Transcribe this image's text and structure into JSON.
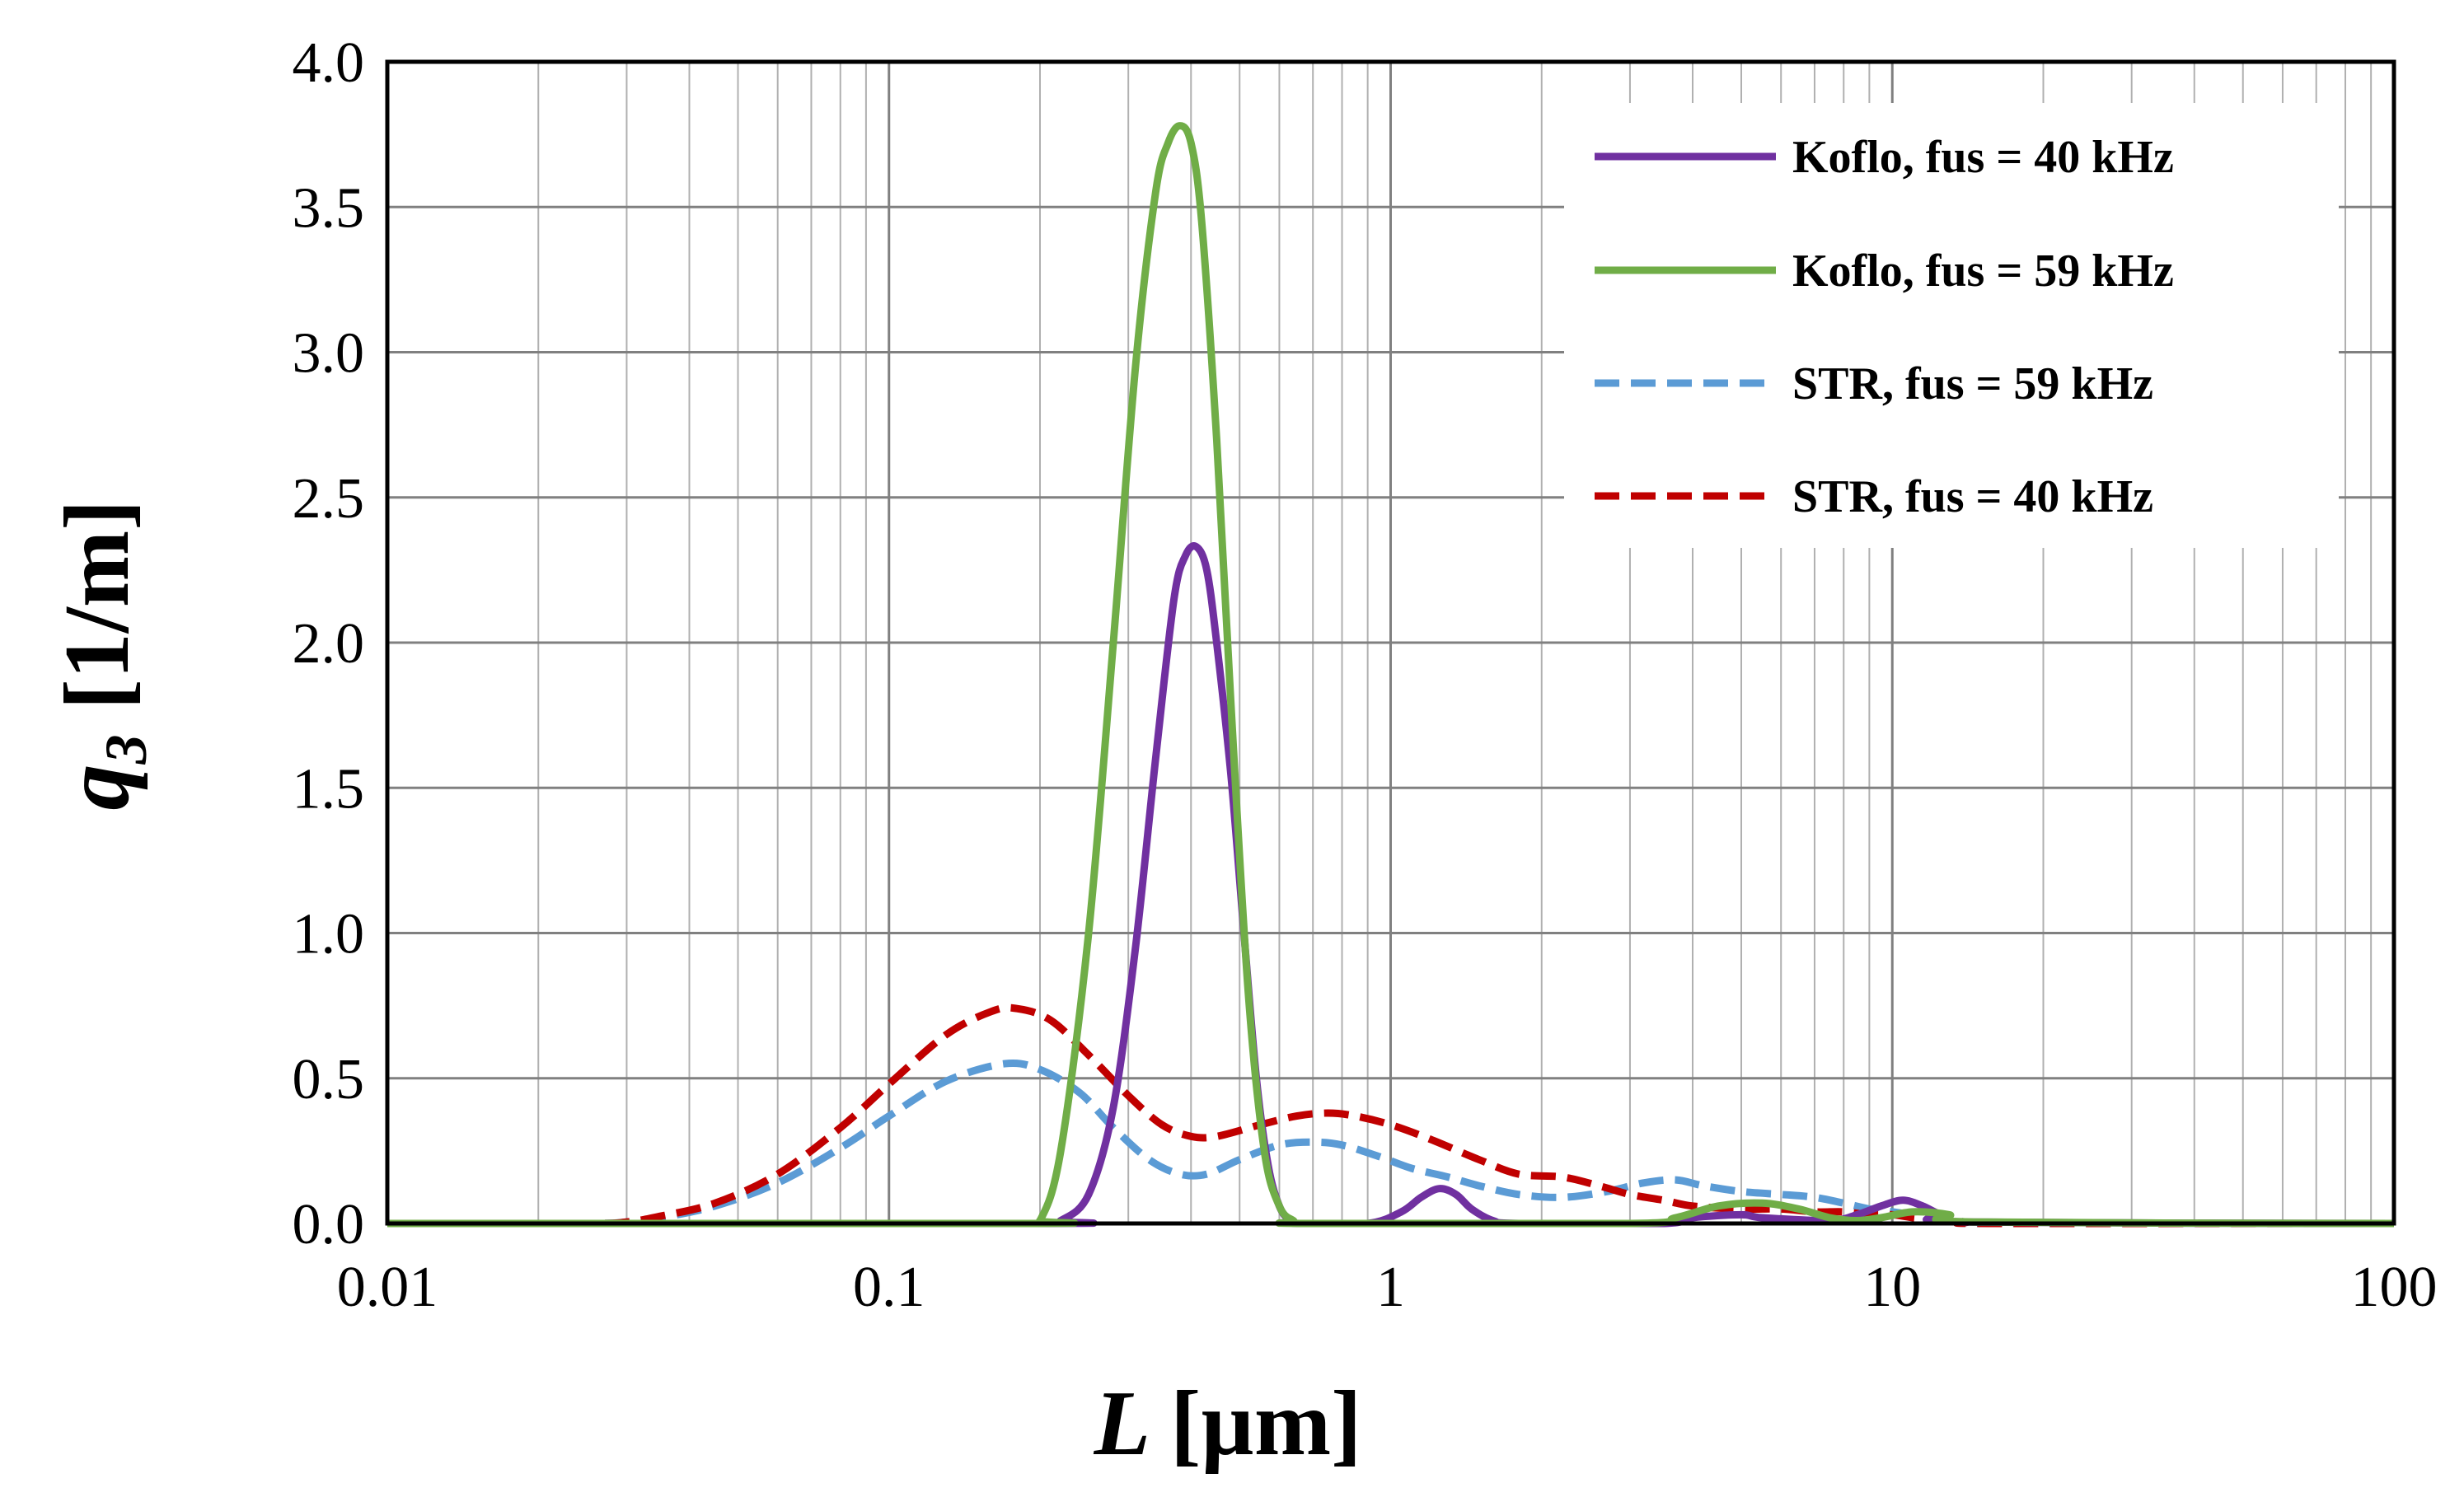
{
  "chart_data": {
    "type": "line",
    "title": "",
    "xlabel": {
      "italic": "L",
      "unit": "[µm]"
    },
    "ylabel": {
      "italic": "q",
      "subscript": "3",
      "unit": "[1/m]"
    },
    "xscale": "log",
    "xlim": [
      0.01,
      100
    ],
    "ylim": [
      0,
      4.0
    ],
    "x_ticks": [
      0.01,
      0.1,
      1,
      10,
      100
    ],
    "x_tick_labels": [
      "0.01",
      "0.1",
      "1",
      "10",
      "100"
    ],
    "y_ticks": [
      0,
      0.5,
      1.0,
      1.5,
      2.0,
      2.5,
      3.0,
      3.5,
      4.0
    ],
    "y_tick_labels": [
      "0.0",
      "0.5",
      "1.0",
      "1.5",
      "2.0",
      "2.5",
      "3.0",
      "3.5",
      "4.0"
    ],
    "grid": true,
    "legend_position": "top-right",
    "series": [
      {
        "name": "Koflo, fus = 40 kHz",
        "color": "#7030a0",
        "dash": "solid",
        "x": [
          0.01,
          0.2,
          0.22,
          0.25,
          0.28,
          0.31,
          0.34,
          0.37,
          0.39,
          0.41,
          0.43,
          0.45,
          0.48,
          0.51,
          0.54,
          0.57,
          0.6,
          0.63,
          0.66,
          0.9,
          1.05,
          1.15,
          1.25,
          1.35,
          1.45,
          1.6,
          1.8,
          3.5,
          4.0,
          5.0,
          5.5,
          7.5,
          8.5,
          9.5,
          10.5,
          11.5,
          12.5,
          14.0,
          100
        ],
        "y": [
          0,
          0,
          0.01,
          0.1,
          0.4,
          0.95,
          1.6,
          2.15,
          2.3,
          2.33,
          2.25,
          2.0,
          1.55,
          1.0,
          0.5,
          0.2,
          0.06,
          0.01,
          0,
          0,
          0.04,
          0.09,
          0.12,
          0.1,
          0.05,
          0.01,
          0,
          0,
          0.02,
          0.03,
          0.02,
          0.01,
          0.03,
          0.06,
          0.08,
          0.06,
          0.03,
          0.005,
          0
        ]
      },
      {
        "name": "Koflo, fus = 59 kHz",
        "color": "#70ad47",
        "dash": "solid",
        "x": [
          0.01,
          0.185,
          0.2,
          0.22,
          0.25,
          0.28,
          0.31,
          0.34,
          0.36,
          0.38,
          0.4,
          0.42,
          0.45,
          0.48,
          0.52,
          0.56,
          0.6,
          0.64,
          0.68,
          3.0,
          3.7,
          4.5,
          5.5,
          6.5,
          7.5,
          8.5,
          9.5,
          11.0,
          13.0,
          14.5,
          100
        ],
        "y": [
          0,
          0,
          0.01,
          0.25,
          1.0,
          2.0,
          2.95,
          3.55,
          3.72,
          3.78,
          3.72,
          3.45,
          2.7,
          1.8,
          0.8,
          0.25,
          0.06,
          0.01,
          0,
          0,
          0.02,
          0.06,
          0.07,
          0.05,
          0.02,
          0.01,
          0.02,
          0.04,
          0.03,
          0.005,
          0
        ]
      },
      {
        "name": "STR, fus = 59 kHz",
        "color": "#5b9bd5",
        "dash": "dashed",
        "x": [
          0.01,
          0.025,
          0.03,
          0.035,
          0.045,
          0.06,
          0.08,
          0.1,
          0.13,
          0.17,
          0.2,
          0.24,
          0.28,
          0.33,
          0.38,
          0.43,
          0.5,
          0.6,
          0.7,
          0.8,
          0.95,
          1.1,
          1.3,
          1.5,
          1.8,
          2.2,
          2.7,
          3.2,
          3.7,
          4.2,
          5.0,
          6.0,
          7.0,
          8.0,
          9.0,
          10.0,
          11.0,
          12.0,
          14.0,
          16.0,
          100
        ],
        "y": [
          0,
          0,
          0.005,
          0.02,
          0.06,
          0.14,
          0.26,
          0.37,
          0.49,
          0.55,
          0.53,
          0.45,
          0.33,
          0.22,
          0.17,
          0.17,
          0.22,
          0.27,
          0.28,
          0.27,
          0.23,
          0.19,
          0.16,
          0.13,
          0.1,
          0.09,
          0.11,
          0.14,
          0.15,
          0.13,
          0.11,
          0.1,
          0.09,
          0.07,
          0.05,
          0.04,
          0.03,
          0.02,
          0.005,
          0,
          0
        ]
      },
      {
        "name": "STR, fus = 40 kHz",
        "color": "#c00000",
        "dash": "dashed",
        "x": [
          0.01,
          0.025,
          0.03,
          0.035,
          0.045,
          0.06,
          0.08,
          0.1,
          0.13,
          0.16,
          0.18,
          0.21,
          0.25,
          0.3,
          0.35,
          0.4,
          0.45,
          0.55,
          0.65,
          0.75,
          0.85,
          1.0,
          1.2,
          1.5,
          1.8,
          2.2,
          2.6,
          3.0,
          3.5,
          4.0,
          5.0,
          6.0,
          7.0,
          8.0,
          9.0,
          10.0,
          11.0,
          12.0,
          14.0,
          16.0,
          100
        ],
        "y": [
          0,
          0,
          0.005,
          0.025,
          0.07,
          0.17,
          0.33,
          0.48,
          0.65,
          0.73,
          0.74,
          0.7,
          0.58,
          0.44,
          0.34,
          0.3,
          0.3,
          0.34,
          0.37,
          0.38,
          0.37,
          0.34,
          0.29,
          0.22,
          0.17,
          0.16,
          0.13,
          0.1,
          0.08,
          0.06,
          0.05,
          0.05,
          0.04,
          0.04,
          0.03,
          0.03,
          0.02,
          0.015,
          0.005,
          0,
          0
        ]
      }
    ]
  }
}
